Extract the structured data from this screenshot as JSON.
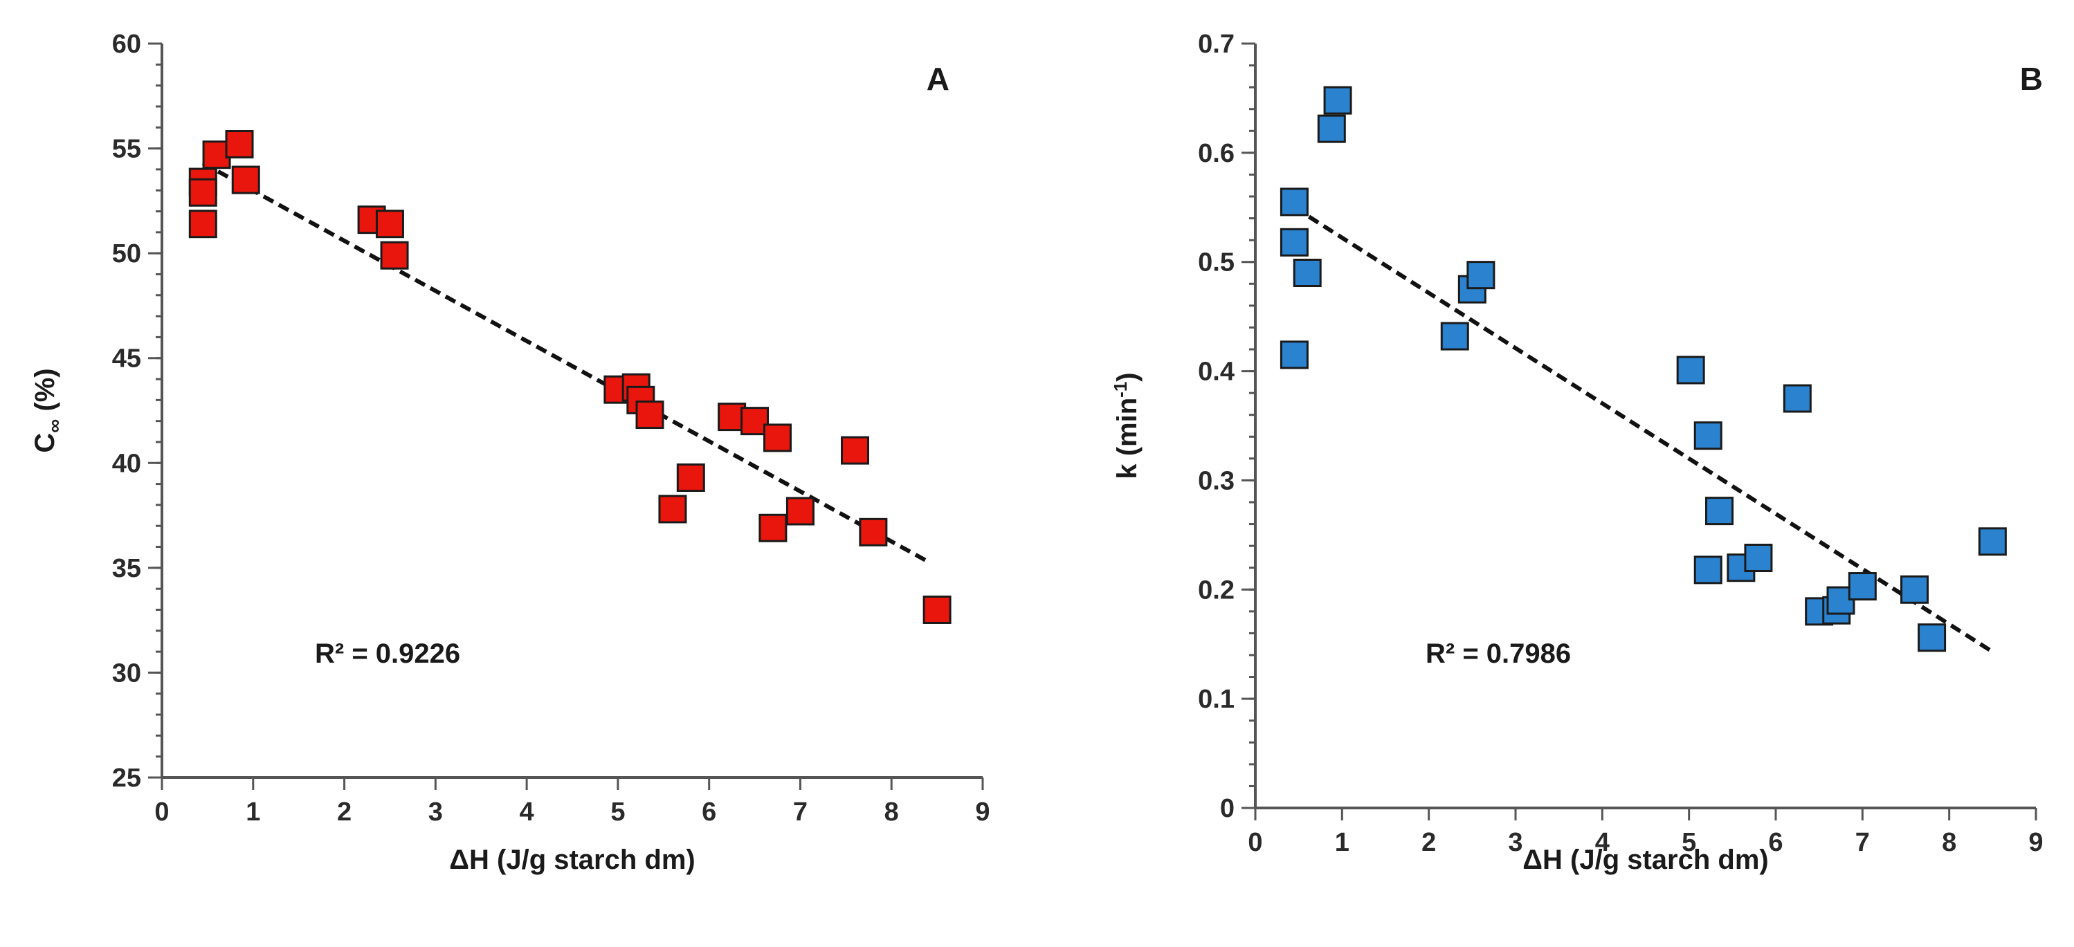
{
  "chart_data": [
    {
      "type": "scatter",
      "panel_label": "A",
      "xlabel": "ΔH (J/g starch dm)",
      "ylabel_main": "C",
      "ylabel_sub": "∞",
      "ylabel_rest": " (%)",
      "xlim": [
        0,
        9
      ],
      "ylim": [
        25,
        60
      ],
      "x_ticks": [
        "0",
        "1",
        "2",
        "3",
        "4",
        "5",
        "6",
        "7",
        "8",
        "9"
      ],
      "y_ticks": [
        "25",
        "30",
        "35",
        "40",
        "45",
        "50",
        "55",
        "60"
      ],
      "y_minor_step": 1,
      "marker_color": "#e8160c",
      "trend_start": [
        0.45,
        54.3
      ],
      "trend_end": [
        8.4,
        35.3
      ],
      "r2_text": "R² = 0.9226",
      "points": [
        {
          "x": 0.45,
          "y": 53.4
        },
        {
          "x": 0.45,
          "y": 52.9
        },
        {
          "x": 0.45,
          "y": 51.4
        },
        {
          "x": 0.6,
          "y": 54.7
        },
        {
          "x": 0.85,
          "y": 55.2
        },
        {
          "x": 0.92,
          "y": 53.5
        },
        {
          "x": 2.3,
          "y": 51.6
        },
        {
          "x": 2.5,
          "y": 51.4
        },
        {
          "x": 2.55,
          "y": 49.9
        },
        {
          "x": 5.0,
          "y": 43.5
        },
        {
          "x": 5.2,
          "y": 43.6
        },
        {
          "x": 5.25,
          "y": 43.0
        },
        {
          "x": 5.35,
          "y": 42.3
        },
        {
          "x": 5.6,
          "y": 37.8
        },
        {
          "x": 5.8,
          "y": 39.3
        },
        {
          "x": 6.25,
          "y": 42.2
        },
        {
          "x": 6.5,
          "y": 42.0
        },
        {
          "x": 6.7,
          "y": 36.9
        },
        {
          "x": 6.75,
          "y": 41.2
        },
        {
          "x": 7.0,
          "y": 37.7
        },
        {
          "x": 7.6,
          "y": 40.6
        },
        {
          "x": 7.8,
          "y": 36.7
        },
        {
          "x": 8.5,
          "y": 33.0
        }
      ]
    },
    {
      "type": "scatter",
      "panel_label": "B",
      "xlabel": "ΔH (J/g starch dm)",
      "ylabel_main": "k (min",
      "ylabel_sup": "-1",
      "ylabel_rest": ")",
      "xlim": [
        0,
        9
      ],
      "ylim": [
        0,
        0.7
      ],
      "x_ticks": [
        "0",
        "1",
        "2",
        "3",
        "4",
        "5",
        "6",
        "7",
        "8",
        "9"
      ],
      "y_ticks": [
        "0",
        "0.1",
        "0.2",
        "0.3",
        "0.4",
        "0.5",
        "0.6",
        "0.7"
      ],
      "y_minor_step": 0.02,
      "marker_color": "#2b83cf",
      "trend_start": [
        0.45,
        0.55
      ],
      "trend_end": [
        8.5,
        0.143
      ],
      "r2_text": "R² = 0.7986",
      "points": [
        {
          "x": 0.45,
          "y": 0.555
        },
        {
          "x": 0.45,
          "y": 0.518
        },
        {
          "x": 0.45,
          "y": 0.415
        },
        {
          "x": 0.6,
          "y": 0.49
        },
        {
          "x": 0.88,
          "y": 0.622
        },
        {
          "x": 0.95,
          "y": 0.648
        },
        {
          "x": 2.3,
          "y": 0.432
        },
        {
          "x": 2.5,
          "y": 0.475
        },
        {
          "x": 2.6,
          "y": 0.488
        },
        {
          "x": 5.02,
          "y": 0.401
        },
        {
          "x": 5.22,
          "y": 0.341
        },
        {
          "x": 5.22,
          "y": 0.218
        },
        {
          "x": 5.35,
          "y": 0.272
        },
        {
          "x": 5.6,
          "y": 0.22
        },
        {
          "x": 5.8,
          "y": 0.229
        },
        {
          "x": 6.25,
          "y": 0.375
        },
        {
          "x": 6.5,
          "y": 0.18
        },
        {
          "x": 6.7,
          "y": 0.181
        },
        {
          "x": 6.75,
          "y": 0.19
        },
        {
          "x": 7.0,
          "y": 0.203
        },
        {
          "x": 7.6,
          "y": 0.2
        },
        {
          "x": 7.8,
          "y": 0.156
        },
        {
          "x": 8.5,
          "y": 0.244
        }
      ]
    }
  ]
}
